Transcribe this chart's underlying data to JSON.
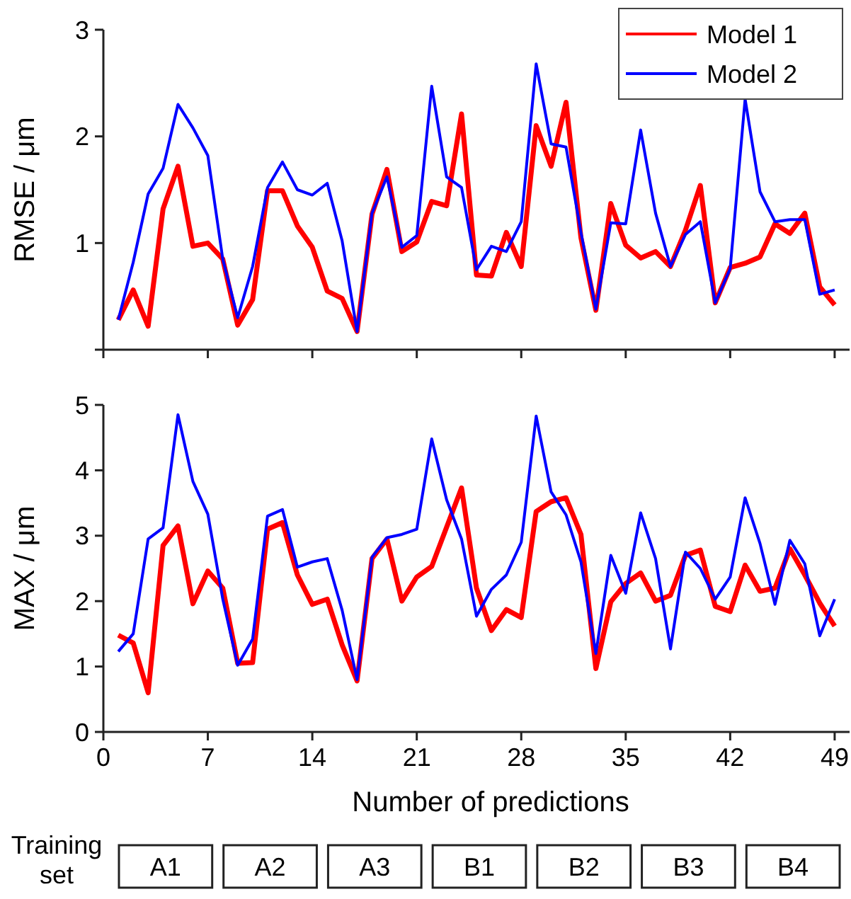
{
  "chart_data": [
    {
      "type": "line",
      "ylabel": "RMSE / μm",
      "x": [
        1,
        2,
        3,
        4,
        5,
        6,
        7,
        8,
        9,
        10,
        11,
        12,
        13,
        14,
        15,
        16,
        17,
        18,
        19,
        20,
        21,
        22,
        23,
        24,
        25,
        26,
        27,
        28,
        29,
        30,
        31,
        32,
        33,
        34,
        35,
        36,
        37,
        38,
        39,
        40,
        41,
        42,
        43,
        44,
        45,
        46,
        47,
        48,
        49
      ],
      "xlim": [
        0,
        50
      ],
      "xticks": [
        0,
        7,
        14,
        21,
        28,
        35,
        42,
        49
      ],
      "ylim": [
        0,
        3
      ],
      "yticks": [
        {
          "value": 0,
          "label": null
        },
        1,
        2,
        3
      ],
      "tick_labels": "y",
      "legend": "top right",
      "grid": false,
      "marker": "none",
      "line_style": "solid",
      "series": [
        {
          "name": "Model 1",
          "color": "#ff0000",
          "values": [
            0.28,
            0.56,
            0.22,
            1.32,
            1.72,
            0.97,
            1.0,
            0.85,
            0.23,
            0.47,
            1.49,
            1.49,
            1.16,
            0.96,
            0.55,
            0.48,
            0.17,
            1.27,
            1.69,
            0.92,
            1.01,
            1.39,
            1.35,
            2.21,
            0.7,
            0.69,
            1.1,
            0.78,
            2.1,
            1.72,
            2.32,
            1.05,
            0.37,
            1.37,
            0.98,
            0.86,
            0.92,
            0.78,
            1.12,
            1.54,
            0.44,
            0.77,
            0.81,
            0.87,
            1.18,
            1.09,
            1.28,
            0.59,
            0.42
          ]
        },
        {
          "name": "Model 2",
          "color": "#0000ff",
          "values": [
            0.28,
            0.82,
            1.46,
            1.7,
            2.3,
            2.08,
            1.82,
            0.85,
            0.3,
            0.78,
            1.52,
            1.76,
            1.5,
            1.45,
            1.56,
            1.02,
            0.17,
            1.28,
            1.62,
            0.96,
            1.07,
            2.47,
            1.62,
            1.52,
            0.75,
            0.97,
            0.92,
            1.2,
            2.68,
            1.93,
            1.9,
            1.1,
            0.38,
            1.19,
            1.18,
            2.06,
            1.28,
            0.78,
            1.08,
            1.2,
            0.44,
            0.76,
            2.35,
            1.48,
            1.2,
            1.22,
            1.22,
            0.52,
            0.56
          ]
        }
      ]
    },
    {
      "type": "line",
      "ylabel": "MAX / μm",
      "xlabel": "Number of predictions",
      "x": [
        1,
        2,
        3,
        4,
        5,
        6,
        7,
        8,
        9,
        10,
        11,
        12,
        13,
        14,
        15,
        16,
        17,
        18,
        19,
        20,
        21,
        22,
        23,
        24,
        25,
        26,
        27,
        28,
        29,
        30,
        31,
        32,
        33,
        34,
        35,
        36,
        37,
        38,
        39,
        40,
        41,
        42,
        43,
        44,
        45,
        46,
        47,
        48,
        49
      ],
      "xlim": [
        0,
        50
      ],
      "xticks": [
        0,
        7,
        14,
        21,
        28,
        35,
        42,
        49
      ],
      "ylim": [
        0,
        5
      ],
      "yticks": [
        0,
        1,
        2,
        3,
        4,
        5
      ],
      "grid": false,
      "marker": "none",
      "line_style": "solid",
      "annotations": [
        "Training set",
        "A1",
        "A2",
        "A3",
        "B1",
        "B2",
        "B3",
        "B4"
      ],
      "series": [
        {
          "color": "#ff0000",
          "values": [
            1.48,
            1.36,
            0.6,
            2.85,
            3.15,
            1.96,
            2.46,
            2.2,
            1.05,
            1.06,
            3.1,
            3.2,
            2.4,
            1.95,
            2.03,
            1.33,
            0.78,
            2.65,
            2.95,
            2.0,
            2.37,
            2.53,
            3.13,
            3.73,
            2.2,
            1.55,
            1.87,
            1.75,
            3.37,
            3.52,
            3.58,
            3.02,
            0.97,
            1.99,
            2.27,
            2.43,
            2.0,
            2.09,
            2.7,
            2.78,
            1.92,
            1.84,
            2.55,
            2.15,
            2.2,
            2.8,
            2.4,
            1.97,
            1.62
          ]
        },
        {
          "color": "#0000ff",
          "values": [
            1.23,
            1.5,
            2.95,
            3.12,
            4.85,
            3.83,
            3.33,
            2.03,
            1.02,
            1.42,
            3.3,
            3.4,
            2.52,
            2.6,
            2.65,
            1.86,
            0.8,
            2.67,
            2.97,
            3.02,
            3.1,
            4.48,
            3.55,
            2.95,
            1.77,
            2.18,
            2.4,
            2.9,
            4.83,
            3.67,
            3.32,
            2.6,
            1.2,
            2.7,
            2.12,
            3.35,
            2.65,
            1.27,
            2.75,
            2.5,
            2.03,
            2.37,
            3.58,
            2.88,
            1.95,
            2.93,
            2.57,
            1.47,
            2.03
          ]
        }
      ]
    }
  ]
}
